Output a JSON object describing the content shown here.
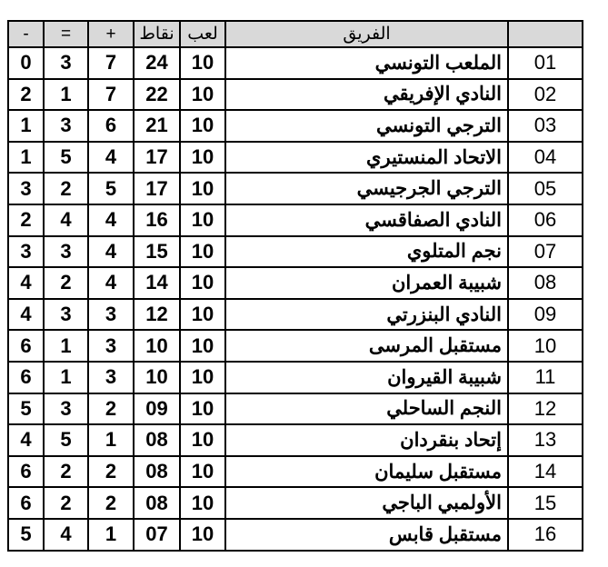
{
  "headers": {
    "lost": "-",
    "drawn": "=",
    "won": "+",
    "points": "نقاط",
    "played": "لعب",
    "team": "الفريق",
    "rank": ""
  },
  "rows": [
    {
      "rank": "01",
      "team": "الملعب التونسي",
      "played": "10",
      "points": "24",
      "won": "7",
      "drawn": "3",
      "lost": "0"
    },
    {
      "rank": "02",
      "team": "النادي الإفريقي",
      "played": "10",
      "points": "22",
      "won": "7",
      "drawn": "1",
      "lost": "2"
    },
    {
      "rank": "03",
      "team": "الترجي التونسي",
      "played": "10",
      "points": "21",
      "won": "6",
      "drawn": "3",
      "lost": "1"
    },
    {
      "rank": "04",
      "team": "الاتحاد المنستيري",
      "played": "10",
      "points": "17",
      "won": "4",
      "drawn": "5",
      "lost": "1"
    },
    {
      "rank": "05",
      "team": "الترجي الجرجيسي",
      "played": "10",
      "points": "17",
      "won": "5",
      "drawn": "2",
      "lost": "3"
    },
    {
      "rank": "06",
      "team": "النادي الصفاقسي",
      "played": "10",
      "points": "16",
      "won": "4",
      "drawn": "4",
      "lost": "2"
    },
    {
      "rank": "07",
      "team": "نجم المتلوي",
      "played": "10",
      "points": "15",
      "won": "4",
      "drawn": "3",
      "lost": "3"
    },
    {
      "rank": "08",
      "team": "شبيبة العمران",
      "played": "10",
      "points": "14",
      "won": "4",
      "drawn": "2",
      "lost": "4"
    },
    {
      "rank": "09",
      "team": "النادي البنزرتي",
      "played": "10",
      "points": "12",
      "won": "3",
      "drawn": "3",
      "lost": "4"
    },
    {
      "rank": "10",
      "team": "مستقبل المرسى",
      "played": "10",
      "points": "10",
      "won": "3",
      "drawn": "1",
      "lost": "6"
    },
    {
      "rank": "11",
      "team": "شبيبة القيروان",
      "played": "10",
      "points": "10",
      "won": "3",
      "drawn": "1",
      "lost": "6"
    },
    {
      "rank": "12",
      "team": "النجم الساحلي",
      "played": "10",
      "points": "09",
      "won": "2",
      "drawn": "3",
      "lost": "5"
    },
    {
      "rank": "13",
      "team": "إتحاد بنقردان",
      "played": "10",
      "points": "08",
      "won": "1",
      "drawn": "5",
      "lost": "4"
    },
    {
      "rank": "14",
      "team": "مستقبل سليمان",
      "played": "10",
      "points": "08",
      "won": "2",
      "drawn": "2",
      "lost": "6"
    },
    {
      "rank": "15",
      "team": "الأولمبي الباجي",
      "played": "10",
      "points": "08",
      "won": "2",
      "drawn": "2",
      "lost": "6"
    },
    {
      "rank": "16",
      "team": "مستقبل قابس",
      "played": "10",
      "points": "07",
      "won": "1",
      "drawn": "4",
      "lost": "5"
    }
  ]
}
